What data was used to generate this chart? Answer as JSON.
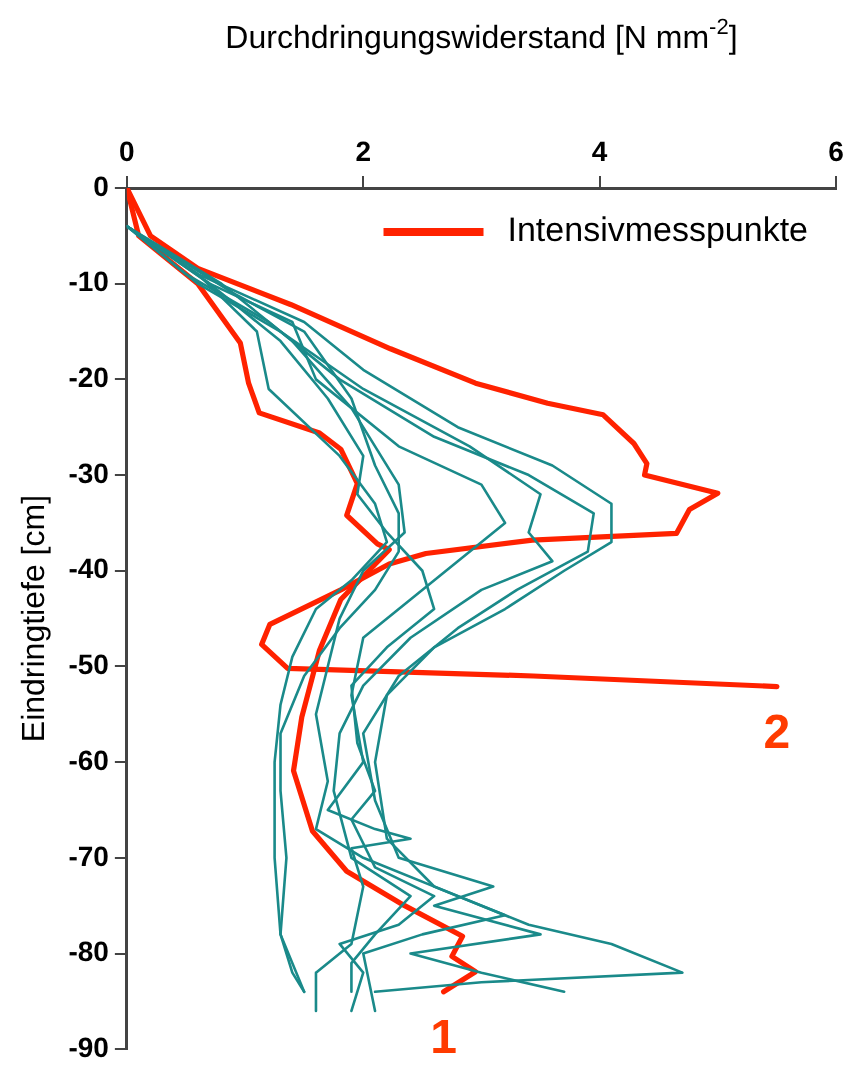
{
  "chart_data": {
    "type": "line",
    "xlabel": "Durchdringungswiderstand [N mm$^{-2}$]",
    "ylabel": "Eindringtiefe [cm]",
    "xlim": [
      0,
      6
    ],
    "xticks": [
      0,
      2,
      4,
      6
    ],
    "ylim": [
      -90,
      0
    ],
    "yticks": [
      0,
      -10,
      -20,
      -30,
      -40,
      -50,
      -60,
      -70,
      -80,
      -90
    ],
    "grid": false,
    "legend": "top right",
    "marker": "none",
    "line_style": "solid",
    "annotations": [
      "1",
      "2"
    ],
    "series": [
      {
        "color": "#1a8a8a",
        "x": [
          0,
          0.6,
          1.5,
          2.0,
          2.8,
          3.6,
          4.1,
          4.1,
          3.7,
          3.2,
          2.6,
          2.2,
          2.1,
          2.2,
          2.6,
          3.4,
          4.1,
          4.7,
          3.0,
          2.1
        ],
        "values": [
          -4,
          -9,
          -14,
          -19,
          -25,
          -29,
          -33,
          -37,
          -40,
          -44,
          -48,
          -53,
          -60,
          -68,
          -73,
          -77,
          -79,
          -82,
          -83,
          -84
        ]
      },
      {
        "color": "#1a8a8a",
        "x": [
          0,
          0.5,
          1.2,
          1.8,
          2.6,
          3.4,
          3.95,
          3.9,
          3.3,
          2.8,
          2.3,
          2.0,
          2.1,
          2.3,
          3.1,
          2.6,
          3.5,
          2.4,
          3.0,
          3.7
        ],
        "values": [
          -4,
          -9,
          -14,
          -20,
          -26,
          -30,
          -34,
          -38,
          -42,
          -46,
          -51,
          -57,
          -64,
          -70,
          -73,
          -75,
          -78,
          -80,
          -82,
          -84
        ]
      },
      {
        "color": "#1a8a8a",
        "x": [
          0,
          0.6,
          1.3,
          2.0,
          2.9,
          3.5,
          3.4,
          3.6,
          3.0,
          2.4,
          2.0,
          1.8,
          1.75,
          1.9,
          2.4,
          2.1,
          1.9,
          1.9
        ],
        "values": [
          -4,
          -10,
          -15,
          -21,
          -27,
          -32,
          -36,
          -39,
          -42,
          -47,
          -52,
          -57,
          -63,
          -70,
          -74,
          -78,
          -81,
          -84
        ]
      },
      {
        "color": "#1a8a8a",
        "x": [
          0,
          0.7,
          1.4,
          1.6,
          2.3,
          3.0,
          3.2,
          2.8,
          2.4,
          2.0,
          1.9,
          2.0,
          1.7,
          2.1,
          2.4,
          1.9,
          2.0,
          1.9,
          1.6,
          1.6
        ],
        "values": [
          -4,
          -10,
          -14,
          -20,
          -27,
          -31,
          -35,
          -39,
          -43,
          -47,
          -53,
          -60,
          -65,
          -67,
          -68,
          -69,
          -73,
          -79,
          -82,
          -86
        ]
      },
      {
        "color": "#1a8a8a",
        "x": [
          0,
          0.9,
          1.5,
          1.9,
          2.1,
          2.3,
          2.3,
          2.1,
          1.8,
          1.5,
          1.3,
          1.3,
          1.35,
          1.3,
          1.4,
          1.5
        ],
        "values": [
          -4,
          -11,
          -15,
          -22,
          -29,
          -34,
          -38,
          -42,
          -46,
          -51,
          -57,
          -63,
          -70,
          -78,
          -82,
          -84
        ]
      },
      {
        "color": "#1a8a8a",
        "x": [
          0,
          0.6,
          1.1,
          1.2,
          1.8,
          2.1,
          2.2,
          1.9,
          1.6,
          1.4,
          1.3,
          1.25,
          1.25,
          1.3,
          1.5
        ],
        "values": [
          -4,
          -9,
          -15,
          -21,
          -28,
          -33,
          -37,
          -41,
          -44,
          -49,
          -54,
          -60,
          -70,
          -78,
          -84
        ]
      },
      {
        "color": "#1a8a8a",
        "x": [
          0,
          0.8,
          1.4,
          1.9,
          2.3,
          2.35,
          2.0,
          1.8,
          1.7,
          1.6,
          1.7,
          1.6,
          2.0,
          2.8,
          3.2,
          2.5,
          2.0,
          2.1
        ],
        "values": [
          -4,
          -10,
          -16,
          -23,
          -31,
          -36,
          -40,
          -45,
          -50,
          -55,
          -62,
          -67,
          -70,
          -74,
          -76,
          -78,
          -80,
          -86
        ]
      },
      {
        "color": "#1a8a8a",
        "x": [
          0,
          0.7,
          1.3,
          1.7,
          2.0,
          1.95,
          2.2,
          2.5,
          2.6,
          2.2,
          1.9,
          1.95,
          2.1,
          1.9,
          2.1,
          2.6,
          2.3,
          1.8,
          2.0,
          1.9
        ],
        "values": [
          -4,
          -10,
          -16,
          -22,
          -28,
          -32,
          -36,
          -40,
          -44,
          -48,
          -52,
          -58,
          -63,
          -66,
          -71,
          -74,
          -77,
          -79,
          -82,
          -86
        ]
      },
      {
        "name": "Intensivmesspunkte",
        "color": "#ff2200",
        "x": [
          0,
          0.1,
          0.6,
          0.96,
          1.03,
          1.12,
          1.63,
          1.81,
          1.95,
          1.86,
          2.12,
          2.22,
          1.81,
          1.63,
          1.48,
          1.41,
          1.57,
          1.86,
          2.35,
          2.84,
          2.75,
          2.95,
          2.68
        ],
        "values": [
          0,
          -5,
          -10,
          -16.2,
          -20.4,
          -23.5,
          -25.6,
          -27.3,
          -30.9,
          -34.2,
          -37.2,
          -37.8,
          -43,
          -48.3,
          -55.3,
          -60.9,
          -67.2,
          -71.4,
          -75,
          -78.2,
          -80.3,
          -81.9,
          -84
        ]
      },
      {
        "color": "#ff2200",
        "x": [
          0,
          0.2,
          0.6,
          1.39,
          2.23,
          2.95,
          3.56,
          4.03,
          4.29,
          4.4,
          4.38,
          5.0,
          4.76,
          4.65,
          3.43,
          2.53,
          2.22,
          1.81,
          1.21,
          1.14,
          1.36,
          3.44,
          5.5
        ],
        "values": [
          0,
          -5,
          -8.4,
          -12.2,
          -16.8,
          -20.4,
          -22.5,
          -23.7,
          -26.7,
          -28.8,
          -30,
          -31.9,
          -33.6,
          -36.1,
          -36.8,
          -38.2,
          -39.3,
          -42,
          -45.6,
          -47.7,
          -50.2,
          -51,
          -52.1
        ]
      }
    ]
  }
}
